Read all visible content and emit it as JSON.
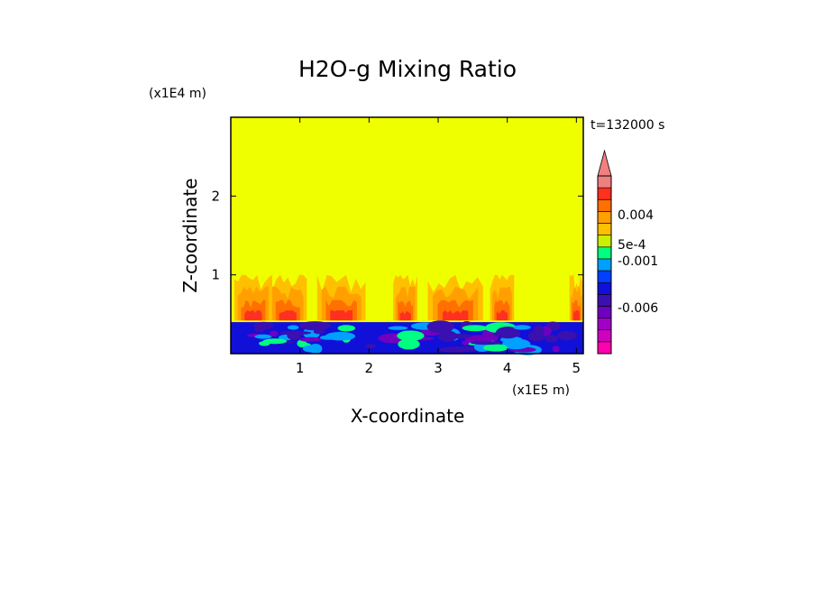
{
  "chart_data": {
    "type": "heatmap",
    "title": "H2O-g Mixing Ratio",
    "xlabel": "X-coordinate",
    "ylabel": "Z-coordinate",
    "x_unit": "(x1E5 m)",
    "y_unit": "(x1E4 m)",
    "time_label": "t=132000 s",
    "xlim": [
      0,
      5.1
    ],
    "ylim": [
      0,
      3
    ],
    "x_ticks": [
      "1",
      "2",
      "3",
      "4",
      "5"
    ],
    "x_tick_values": [
      1,
      2,
      3,
      4,
      5
    ],
    "y_ticks": [
      "1",
      "2"
    ],
    "y_tick_values": [
      1,
      2
    ],
    "background_level_color": "#f0ff00",
    "colorbar": {
      "colors_bottom_to_top": [
        "#ff00b0",
        "#d000c0",
        "#a000c8",
        "#7000c0",
        "#3a10b0",
        "#1010d8",
        "#0040ff",
        "#00a0ff",
        "#00ff80",
        "#c8f000",
        "#ffc000",
        "#ffa000",
        "#ff7000",
        "#ff3020",
        "#f08080"
      ],
      "extend_top": true,
      "tick_labels": [
        "0.004",
        "5e-4",
        "-0.001",
        "-0.006"
      ],
      "tick_values": [
        0.004,
        0.0005,
        -0.001,
        -0.006
      ]
    },
    "features": {
      "surface_layer_top_z": 0.4,
      "surface_layer_colors": [
        "#1010d8",
        "#3a10b0",
        "#7000c0",
        "#00a0ff",
        "#00ff80"
      ],
      "plume_top_z": 1.0,
      "plume_colors": [
        "#ffc000",
        "#ffa000",
        "#ff7000",
        "#ff3020"
      ]
    }
  }
}
